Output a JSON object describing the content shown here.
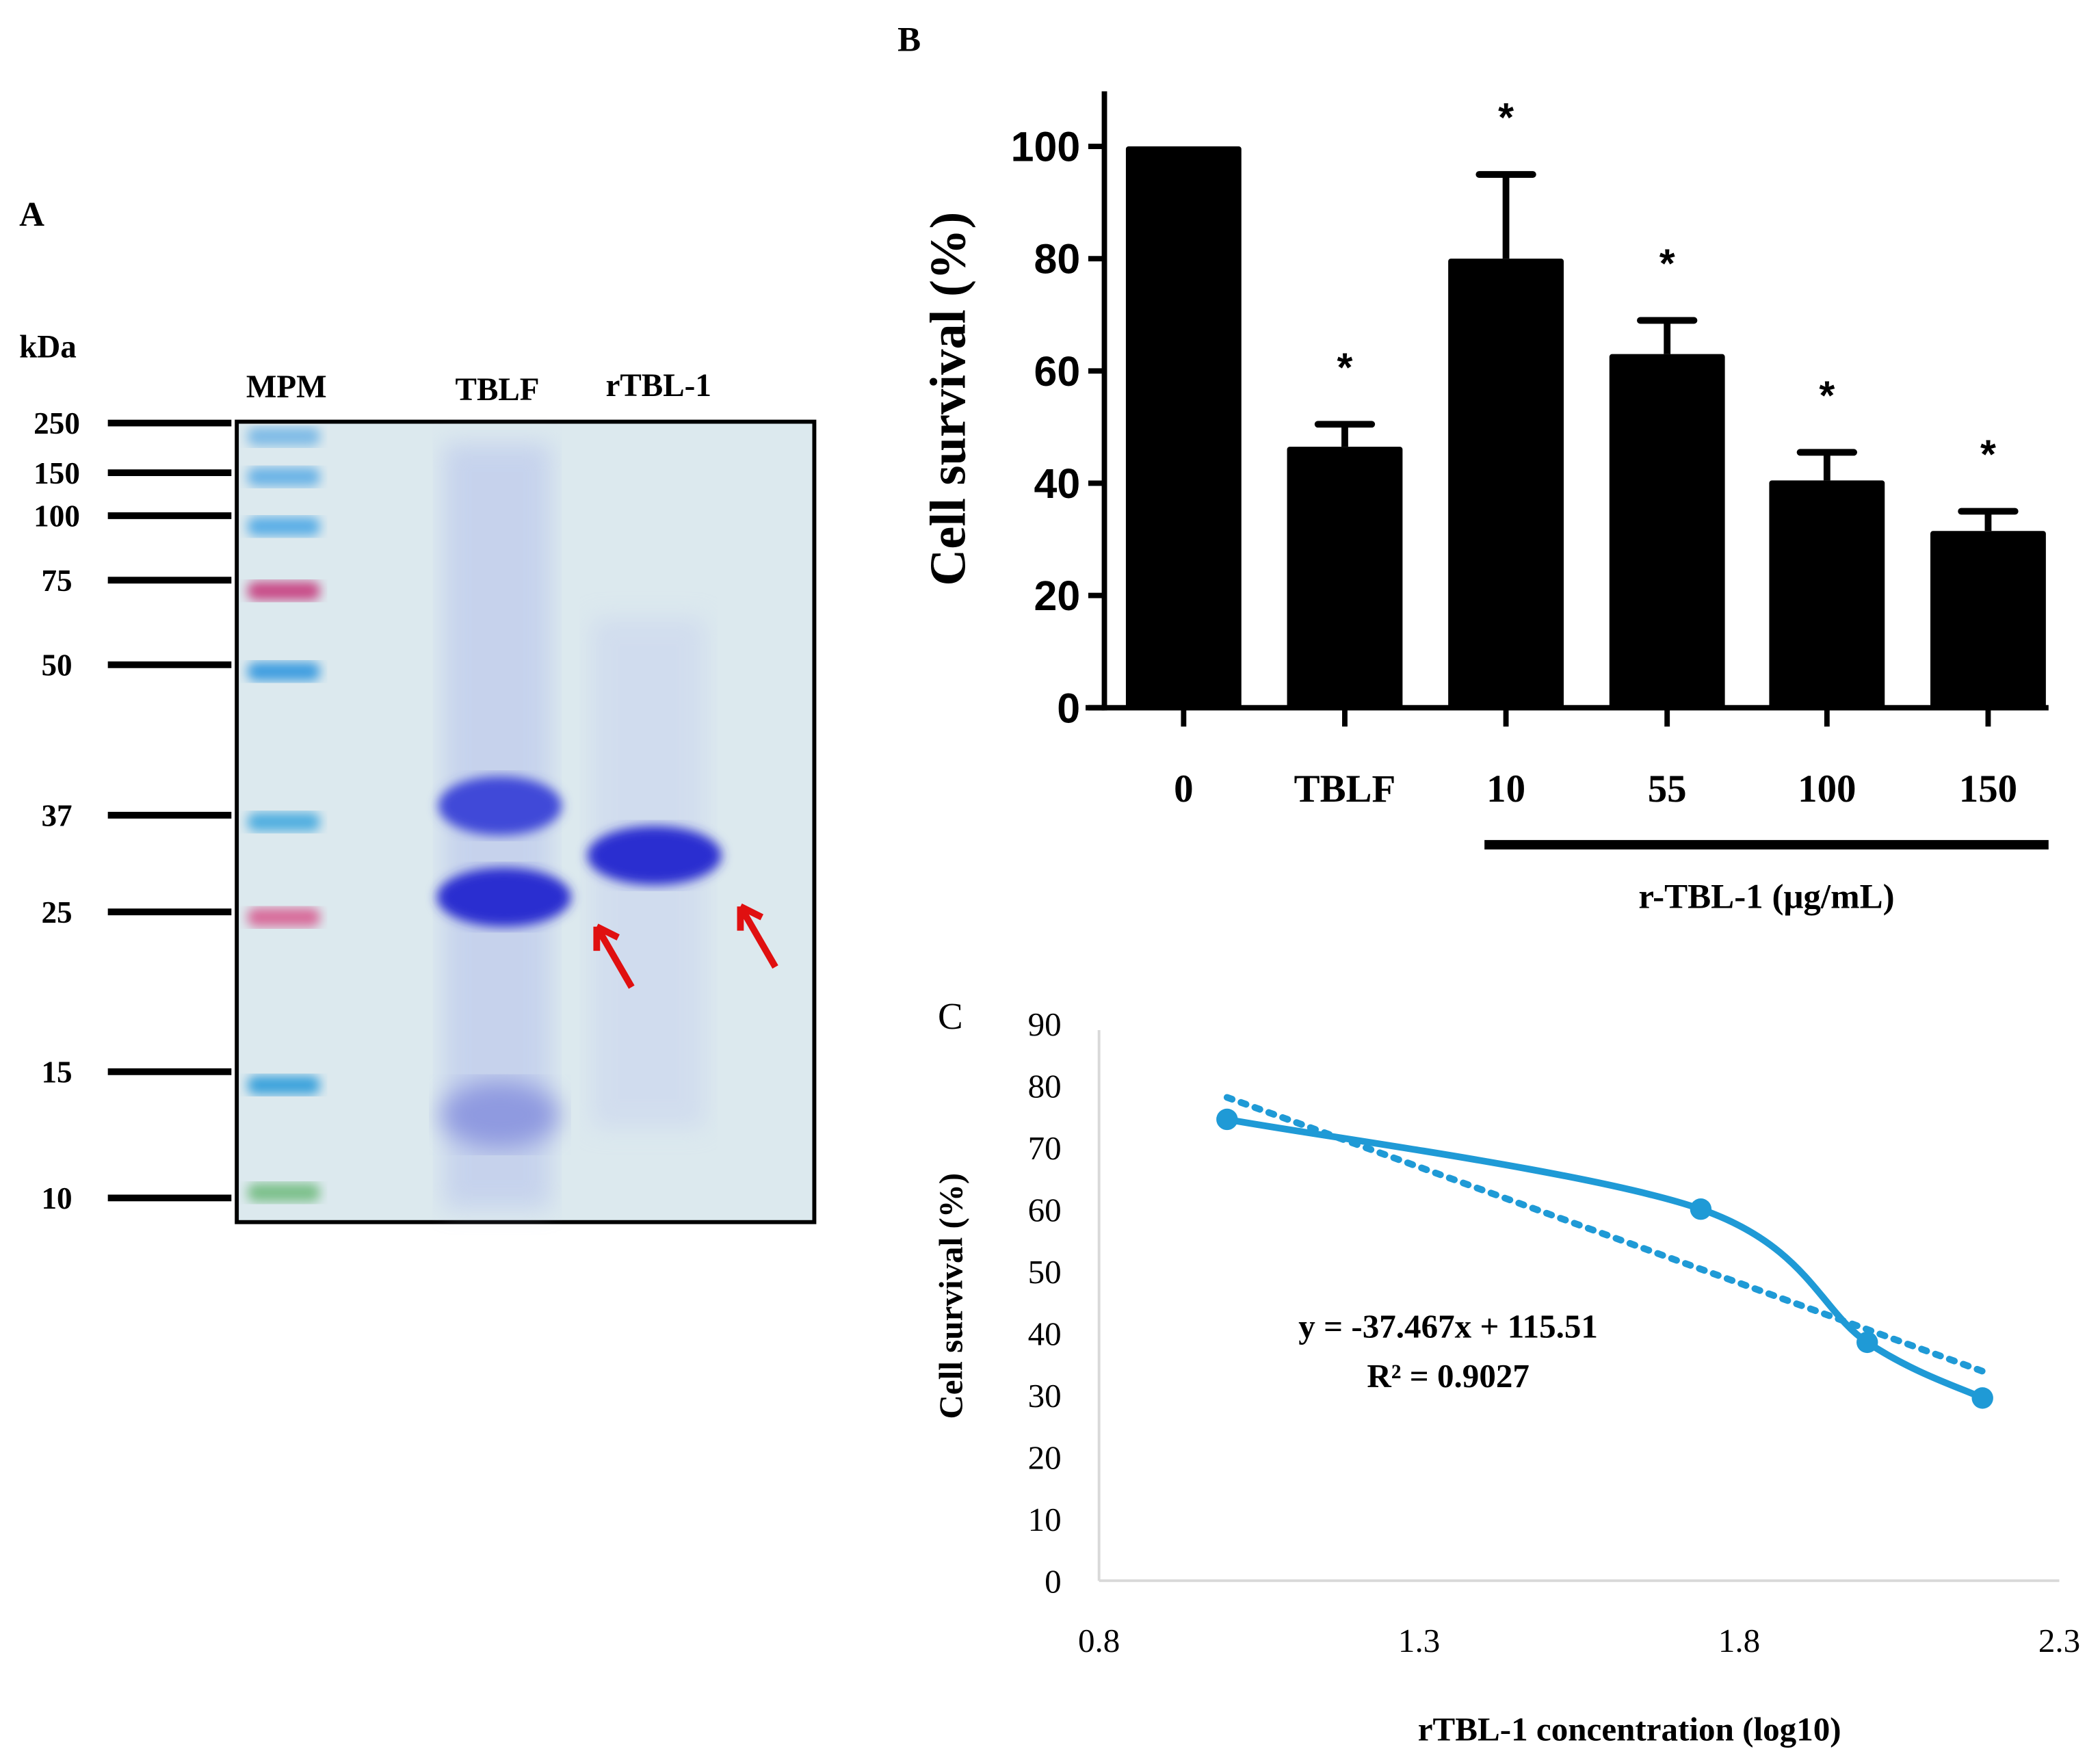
{
  "panel_a": {
    "panel_label": "A",
    "unit_label": "kDa",
    "lane_labels": [
      "MPM",
      "TBLF",
      "rTBL-1"
    ],
    "marker_sizes": [
      "250",
      "150",
      "100",
      "75",
      "50",
      "37",
      "25",
      "15",
      "10"
    ],
    "arrow_color": "#e01010",
    "band_color": "#2a2fd0"
  },
  "chart_data": [
    {
      "panel_label": "B",
      "type": "bar",
      "categories": [
        "0",
        "TBLF",
        "10",
        "55",
        "100",
        "150"
      ],
      "values": [
        100,
        46.5,
        80,
        63,
        40.5,
        31.5
      ],
      "error_upper": [
        100,
        50.5,
        95,
        69,
        45.5,
        35
      ],
      "significance": [
        "",
        "*",
        "*",
        "*",
        "*",
        "*"
      ],
      "ylabel": "Cell survival (%)",
      "group_label": "r-TBL-1 (μg/mL)",
      "yticks": [
        "0",
        "20",
        "40",
        "60",
        "80",
        "100"
      ],
      "ylim": [
        0,
        110
      ],
      "bar_color": "#000000"
    },
    {
      "panel_label": "C",
      "type": "line",
      "x": [
        1.0,
        1.74,
        2.0,
        2.18
      ],
      "y": [
        74.5,
        60,
        38.5,
        29.5
      ],
      "trendline": {
        "slope": -37.467,
        "intercept": 115.51,
        "equation": "y = -37.467x + 115.51",
        "r2_label": "R² = 0.9027"
      },
      "xlabel": "rTBL-1 concentration  (log10)",
      "ylabel": "Cell survival (%)",
      "xticks": [
        "0.8",
        "1.3",
        "1.8",
        "2.3"
      ],
      "yticks": [
        "0",
        "10",
        "20",
        "30",
        "40",
        "50",
        "60",
        "70",
        "80",
        "90"
      ],
      "xlim": [
        0.8,
        2.3
      ],
      "ylim": [
        0,
        90
      ],
      "line_color": "#1f9ad6"
    }
  ]
}
